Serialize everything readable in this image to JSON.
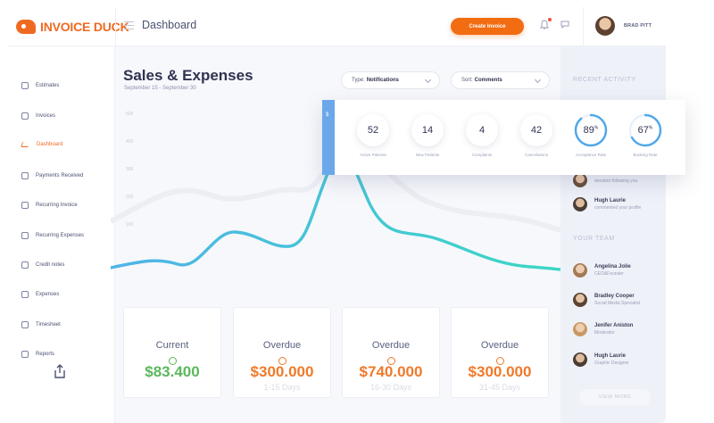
{
  "brand": {
    "name": "INVOICE DUCK"
  },
  "header": {
    "page_title": "Dashboard",
    "create_button": "Create Invoice",
    "user_name": "BRAD PITT"
  },
  "sidebar": {
    "items": [
      {
        "label": "Estimates",
        "icon": "document-icon"
      },
      {
        "label": "Invoices",
        "icon": "copy-icon"
      },
      {
        "label": "Dashboard",
        "icon": "trend-icon",
        "active": true
      },
      {
        "label": "Payments Received",
        "icon": "user-icon"
      },
      {
        "label": "Recurring Invoice",
        "icon": "folder-icon"
      },
      {
        "label": "Recurring Expenses",
        "icon": "gear-icon"
      },
      {
        "label": "Credit notes",
        "icon": "user-icon"
      },
      {
        "label": "Expenses",
        "icon": "document-icon"
      },
      {
        "label": "Timesheet",
        "icon": "document-icon"
      },
      {
        "label": "Reports",
        "icon": "document-icon"
      }
    ]
  },
  "main": {
    "title": "Sales & Expenses",
    "subtitle": "September 15 - September 30",
    "filters": [
      {
        "prefix": "Type:",
        "value": "Notifications"
      },
      {
        "prefix": "Sort:",
        "value": "Comments"
      }
    ],
    "y_ticks": [
      "500",
      "400",
      "300",
      "200",
      "100"
    ]
  },
  "chart_data": {
    "type": "line",
    "y_ticks": [
      "500",
      "400",
      "300",
      "200",
      "100"
    ],
    "colors": [
      "#4fb3e8",
      "#3bd8c4"
    ]
  },
  "stats": {
    "handle": "$",
    "items": [
      {
        "value": "52",
        "label": "Active Patients"
      },
      {
        "value": "14",
        "label": "New Patients"
      },
      {
        "value": "4",
        "label": "Complaints"
      },
      {
        "value": "42",
        "label": "Cancelations"
      },
      {
        "value": "89",
        "unit": "%",
        "label": "Acceptance Rate",
        "fraction": 0.89
      },
      {
        "value": "67",
        "unit": "%",
        "label": "Booking Rate",
        "fraction": 0.67
      }
    ]
  },
  "cards": [
    {
      "title": "Current",
      "value": "$83.400",
      "range": "",
      "color": "#5cb85c"
    },
    {
      "title": "Overdue",
      "value": "$300.000",
      "range": "1-15 Days",
      "color": "#ef7a2a"
    },
    {
      "title": "Overdue",
      "value": "$740.000",
      "range": "16-30 Days",
      "color": "#ef7a2a"
    },
    {
      "title": "Overdue",
      "value": "$300.000",
      "range": "31-45 Days",
      "color": "#ef7a2a"
    }
  ],
  "right_panel": {
    "recent_heading": "RECENT ACTIVITY",
    "activity": [
      {
        "name": "",
        "desc": "donated following you"
      },
      {
        "name": "Hugh Laurie",
        "desc": "commented your profile"
      }
    ],
    "team_heading": "YOUR TEAM",
    "team": [
      {
        "name": "Angelina Jolie",
        "role": "CEO&Founder"
      },
      {
        "name": "Bradley Cooper",
        "role": "Social Media Specialist"
      },
      {
        "name": "Jenifer Aniston",
        "role": "Moderator"
      },
      {
        "name": "Hugh Laurie",
        "role": "Graphic Designer"
      }
    ],
    "view_more": "VIEW MORE"
  }
}
